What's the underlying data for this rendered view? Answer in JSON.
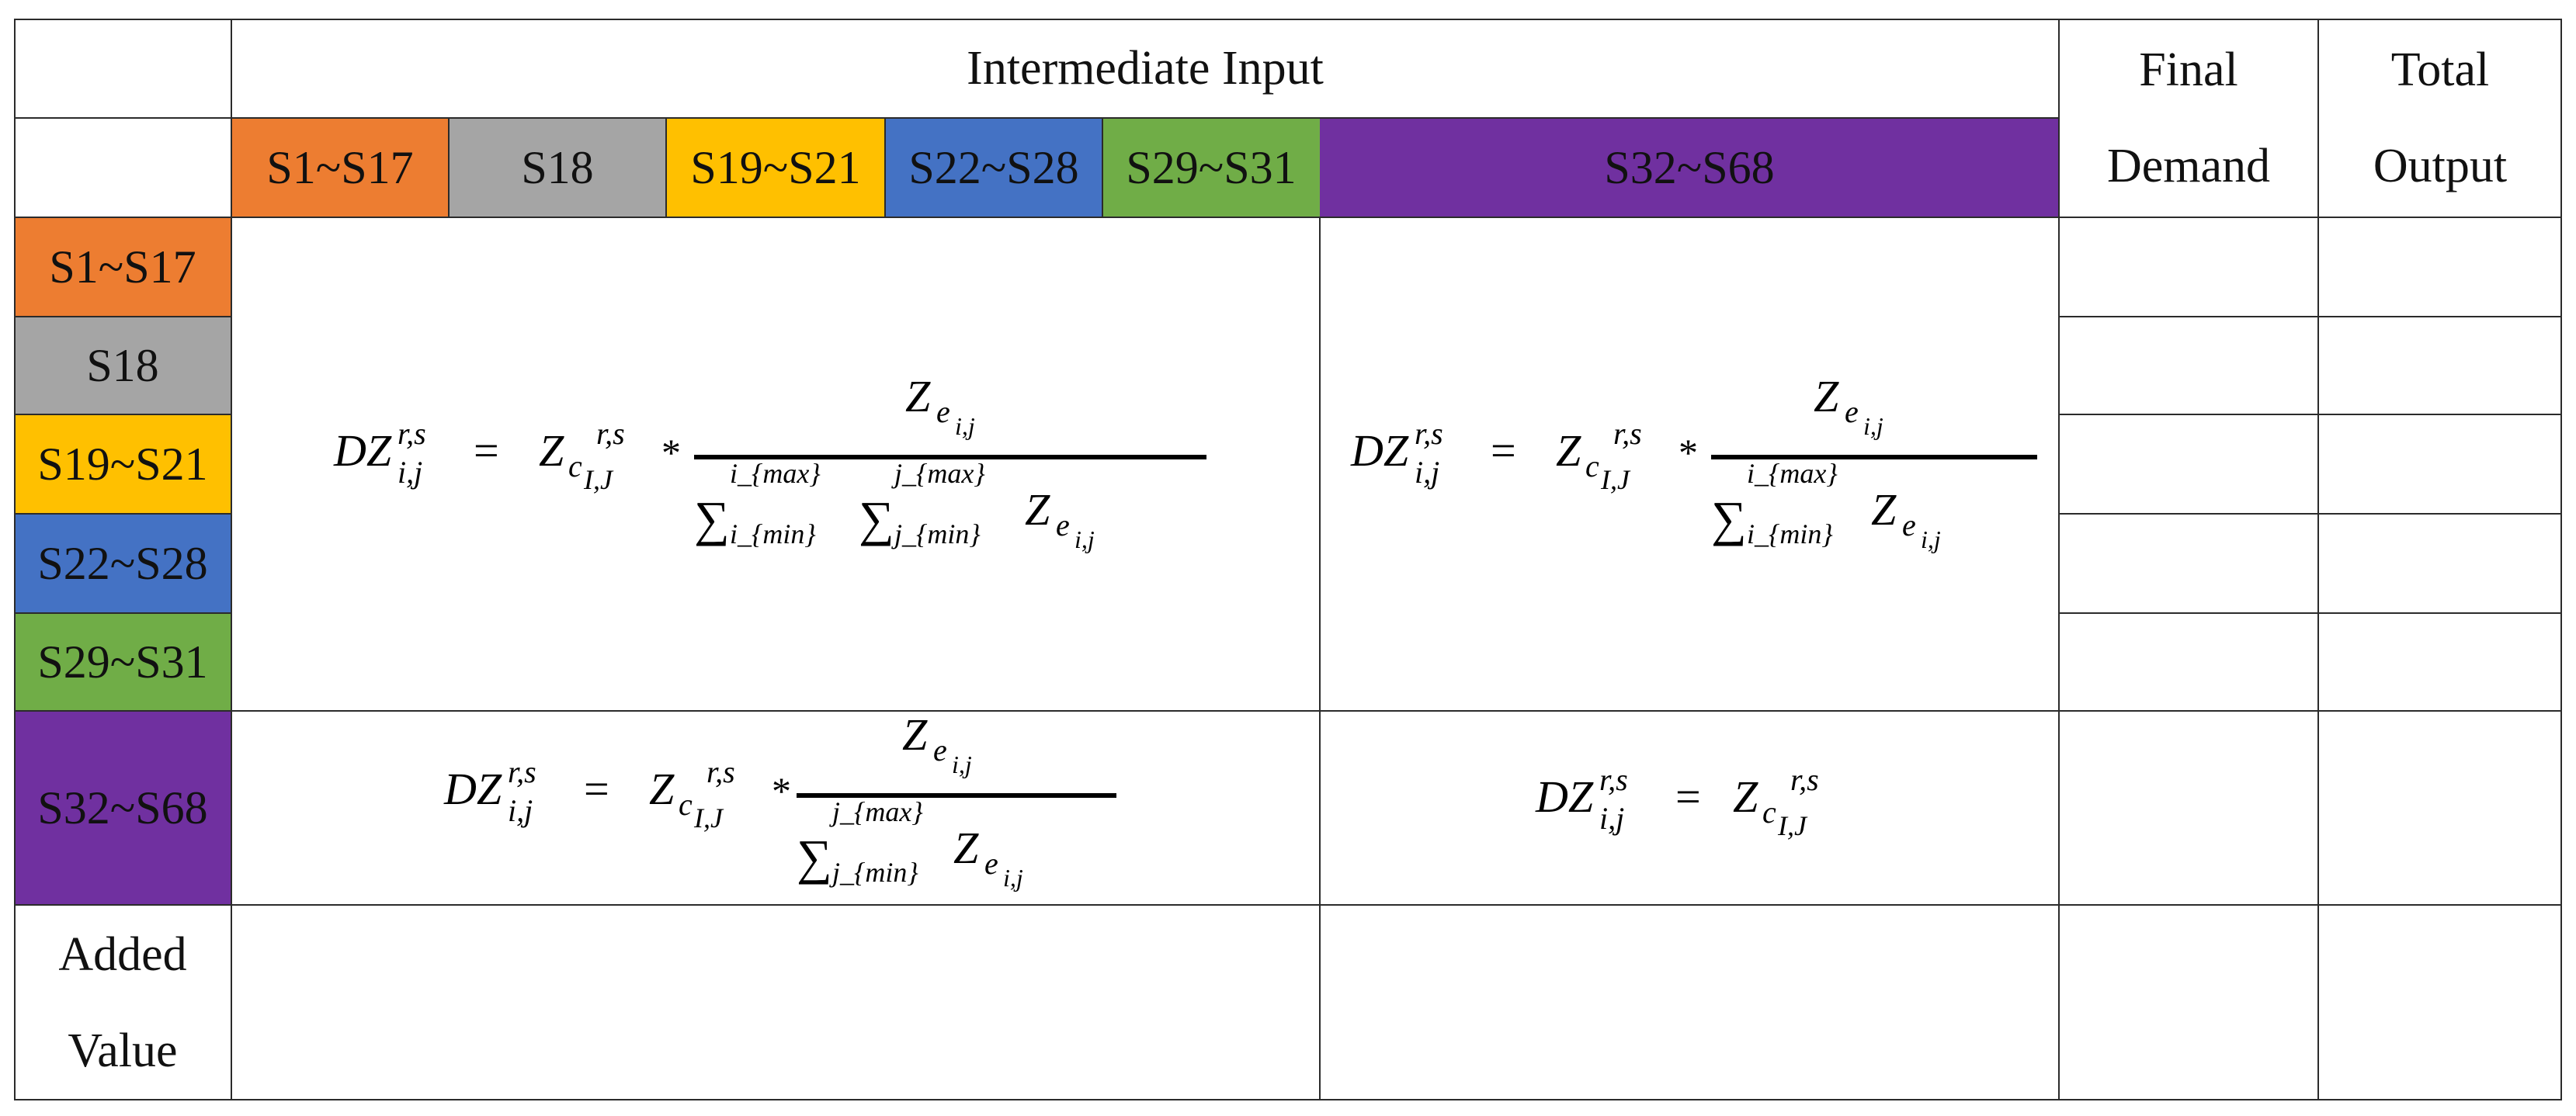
{
  "table": {
    "header": {
      "intermediate_input": "Intermediate Input",
      "final_demand": [
        "Final",
        "Demand"
      ],
      "total_output": [
        "Total",
        "Output"
      ]
    },
    "sectors": [
      {
        "label": "S1~S17",
        "color": "#ED7D31"
      },
      {
        "label": "S18",
        "color": "#A5A5A5"
      },
      {
        "label": "S19~S21",
        "color": "#FFC000"
      },
      {
        "label": "S22~S28",
        "color": "#4472C4"
      },
      {
        "label": "S29~S31",
        "color": "#70AD47"
      },
      {
        "label": "S32~S68",
        "color": "#7030A0"
      }
    ],
    "added_value": [
      "Added",
      "Value"
    ],
    "formulas": {
      "lhs": "DZ",
      "lhs_sub": "i,j",
      "lhs_sup": "r,s",
      "eq": "=",
      "rhs": "Z",
      "rhs_c": "c",
      "rhs_sub": "I,J",
      "rhs_sup": "r,s",
      "times": "*",
      "num": "Z",
      "num_e": "e",
      "num_sub": "i,j",
      "sigma": "∑",
      "i_max": "i_{max}",
      "i_min": "i_{min}",
      "j_max": "j_{max}",
      "j_min": "j_{min}"
    }
  }
}
